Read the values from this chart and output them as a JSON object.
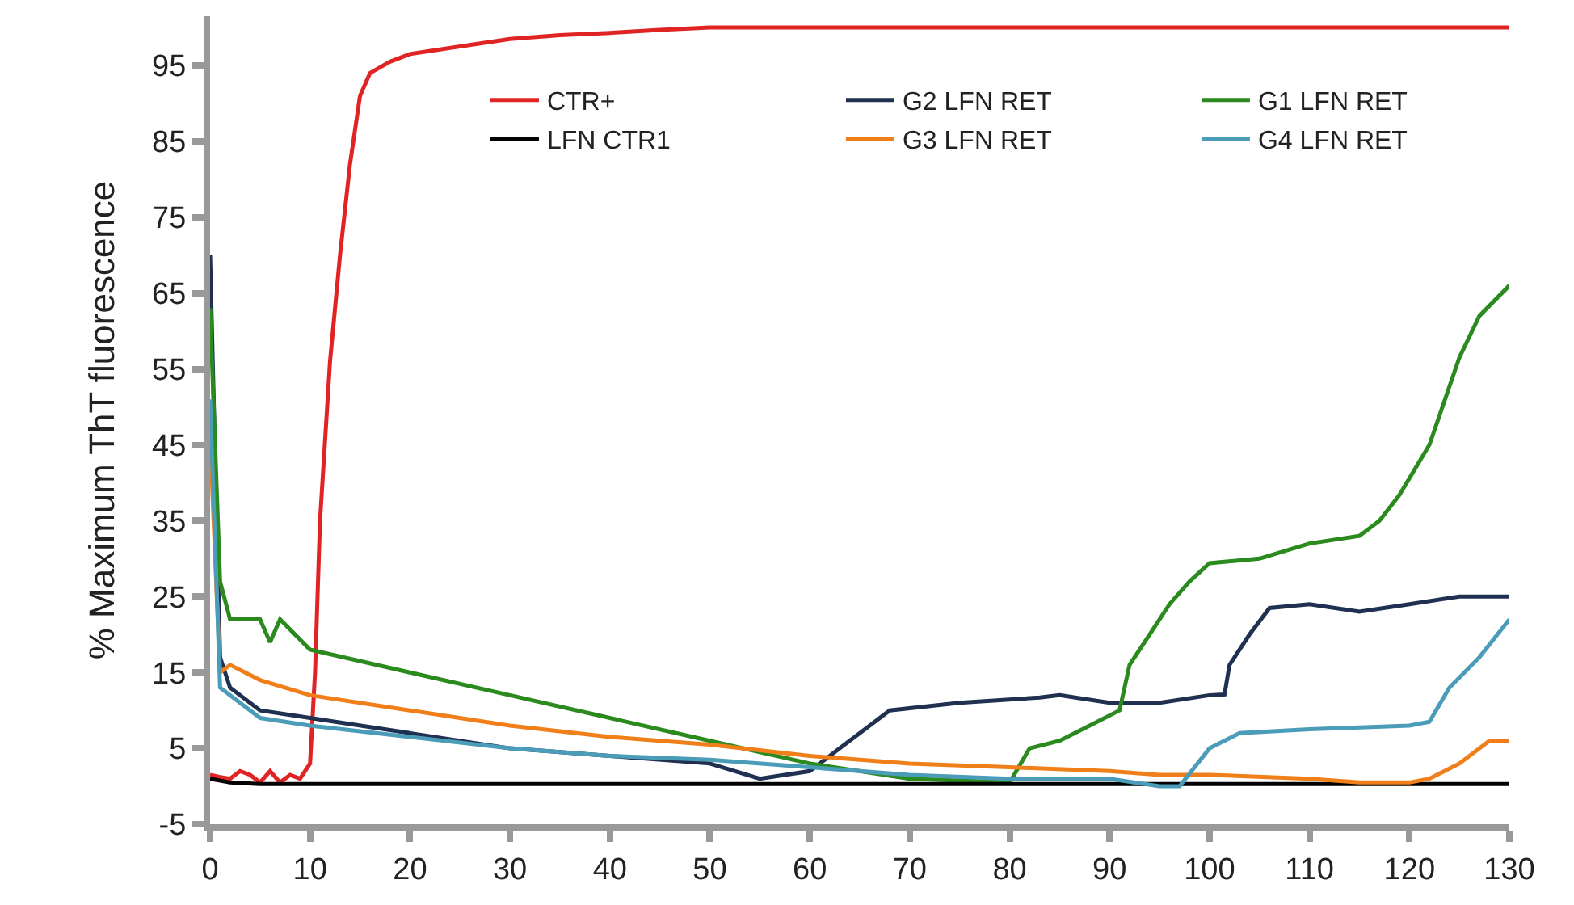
{
  "chart_data": {
    "type": "line",
    "ylabel": "% Maximum ThT fluorescence",
    "xlim": [
      0,
      130
    ],
    "xticks": [
      0,
      10,
      20,
      30,
      40,
      50,
      60,
      70,
      80,
      90,
      100,
      110,
      120,
      130
    ],
    "ylim": [
      -5,
      101.5
    ],
    "yticks": [
      -5,
      5,
      15,
      25,
      35,
      45,
      55,
      65,
      75,
      85,
      95
    ],
    "grid": false,
    "legend": "top",
    "line_style": "solid",
    "series": [
      {
        "name": "CTR+",
        "color": "#e02424",
        "x": [
          0,
          1,
          2,
          3,
          4,
          5,
          6,
          7,
          8,
          9,
          10,
          10.5,
          11,
          12,
          13,
          14,
          15,
          16,
          18,
          20,
          25,
          30,
          35,
          40,
          45,
          50,
          60,
          130
        ],
        "values": [
          1.5,
          1.2,
          1,
          2,
          1.5,
          0.5,
          2,
          0.5,
          1.5,
          1,
          3,
          15,
          35,
          56,
          70,
          82,
          91,
          94,
          95.5,
          96.5,
          97.5,
          98.5,
          99,
          99.3,
          99.7,
          100,
          100,
          100
        ]
      },
      {
        "name": "G2 LFN RET",
        "color": "#1f3050",
        "x": [
          0,
          1,
          2,
          5,
          10,
          20,
          30,
          40,
          50,
          55,
          60,
          63,
          66,
          68,
          75,
          83,
          85,
          90,
          95,
          100,
          101.5,
          102,
          104,
          106,
          110,
          115,
          120,
          125,
          130
        ],
        "values": [
          70,
          17,
          13,
          10,
          9,
          7,
          5,
          4,
          3,
          1,
          2,
          5,
          8,
          10,
          11,
          11.7,
          12,
          11,
          11,
          12,
          12.1,
          16,
          20,
          23.5,
          24,
          23,
          24,
          25,
          25
        ]
      },
      {
        "name": "G1 LFN RET",
        "color": "#2a8a1e",
        "x": [
          0,
          1,
          2,
          5,
          6,
          7,
          10,
          20,
          30,
          40,
          50,
          60,
          70,
          80,
          82,
          85,
          88,
          91,
          92,
          94,
          96,
          98,
          100,
          105,
          110,
          115,
          117,
          119,
          122,
          125,
          127,
          130
        ],
        "values": [
          63,
          27,
          22,
          22,
          19,
          22,
          18,
          15,
          12,
          9,
          6,
          3,
          1,
          0.5,
          5,
          6,
          8,
          10,
          16,
          20,
          24,
          27,
          29.4,
          30,
          32,
          33,
          35,
          38.4,
          45,
          56.5,
          62,
          66
        ]
      },
      {
        "name": "LFN CTR1",
        "color": "#000000",
        "x": [
          0,
          2,
          5,
          130
        ],
        "values": [
          1,
          0.5,
          0.3,
          0.3
        ]
      },
      {
        "name": "G3 LFN RET",
        "color": "#f07f1a",
        "x": [
          0,
          1,
          2,
          5,
          10,
          20,
          30,
          40,
          50,
          60,
          70,
          80,
          90,
          95,
          100,
          110,
          115,
          120,
          122,
          125,
          128,
          130
        ],
        "values": [
          46,
          15,
          16,
          14,
          12,
          10,
          8,
          6.5,
          5.5,
          4,
          3,
          2.5,
          2,
          1.5,
          1.5,
          1,
          0.5,
          0.5,
          1,
          3,
          6,
          6
        ]
      },
      {
        "name": "G4 LFN RET",
        "color": "#4a9cb8",
        "x": [
          0,
          1,
          3,
          5,
          10,
          20,
          30,
          40,
          50,
          60,
          70,
          80,
          90,
          95,
          97,
          100,
          103,
          110,
          120,
          122,
          124,
          127,
          130
        ],
        "values": [
          51,
          13,
          11,
          9,
          8,
          6.5,
          5,
          4,
          3.5,
          2.5,
          1.5,
          1,
          1,
          0,
          0,
          5,
          7,
          7.5,
          8,
          8.5,
          13,
          17,
          22
        ]
      }
    ]
  }
}
